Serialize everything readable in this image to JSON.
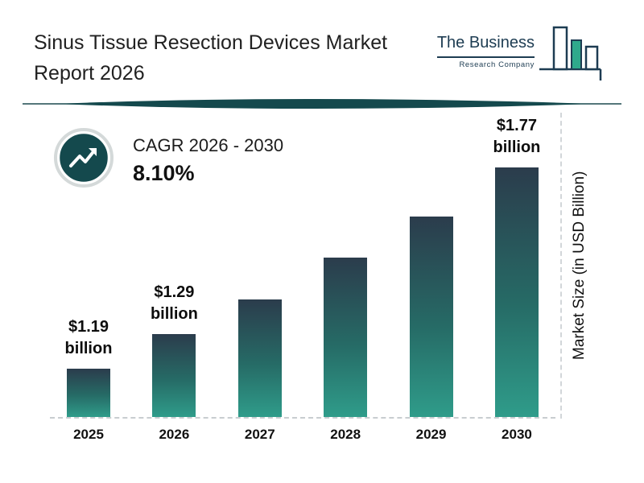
{
  "title": {
    "line1": "Sinus Tissue Resection Devices Market",
    "line2": "Report 2026"
  },
  "logo": {
    "name": "The Business",
    "subtitle": "Research Company"
  },
  "cagr": {
    "label": "CAGR 2026 - 2030",
    "value": "8.10%"
  },
  "icons": {
    "cagr_badge": "trend-up-icon",
    "logo": "bar-chart-logo-icon",
    "divider": "lens-divider-ornament"
  },
  "colors": {
    "bar_top": "#2b3c4c",
    "bar_bottom": "#2f9c8a",
    "accent_dark": "#14494d",
    "logo_navy": "#1d3c52",
    "logo_teal": "#2fa98c"
  },
  "chart_data": {
    "type": "bar",
    "categories": [
      "2025",
      "2026",
      "2027",
      "2028",
      "2029",
      "2030"
    ],
    "values": [
      1.19,
      1.29,
      1.39,
      1.51,
      1.63,
      1.77
    ],
    "value_labels": [
      "$1.19 billion",
      "$1.29 billion",
      "",
      "",
      "",
      "$1.77 billion"
    ],
    "title": "Sinus Tissue Resection Devices Market Report 2026",
    "xlabel": "",
    "ylabel": "Market Size (in USD Billion)",
    "ylim": [
      1.05,
      1.85
    ],
    "grid": false,
    "baseline_style": "dashed",
    "legend": "none"
  }
}
